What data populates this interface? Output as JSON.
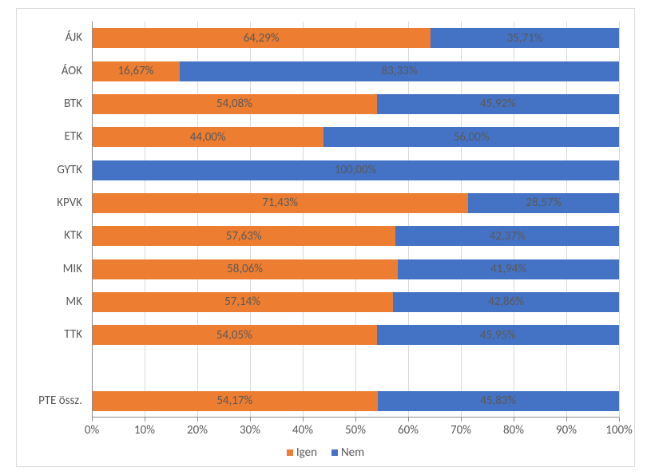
{
  "chart": {
    "type": "stacked-bar-horizontal",
    "background_color": "#ffffff",
    "border_color": "#d9d9d9",
    "grid_color": "#d9d9d9",
    "axis_line_color": "#8c8c8c",
    "text_color": "#595959",
    "label_fontsize": 15,
    "value_fontsize": 15,
    "legend_fontsize": 15,
    "xlim": [
      0,
      100
    ],
    "xtick_step": 10,
    "xtick_suffix": "%",
    "series": [
      {
        "key": "igen",
        "label": "Igen",
        "color": "#ed7d31"
      },
      {
        "key": "nem",
        "label": "Nem",
        "color": "#4472c4"
      }
    ],
    "categories": [
      {
        "label": "ÁJK",
        "igen": 64.29,
        "nem": 35.71,
        "igen_label": "64,29%",
        "nem_label": "35,71%"
      },
      {
        "label": "ÁOK",
        "igen": 16.67,
        "nem": 83.33,
        "igen_label": "16,67%",
        "nem_label": "83,33%"
      },
      {
        "label": "BTK",
        "igen": 54.08,
        "nem": 45.92,
        "igen_label": "54,08%",
        "nem_label": "45,92%"
      },
      {
        "label": "ETK",
        "igen": 44.0,
        "nem": 56.0,
        "igen_label": "44,00%",
        "nem_label": "56,00%"
      },
      {
        "label": "GYTK",
        "igen": 0.0,
        "nem": 100.0,
        "igen_label": "",
        "nem_label": "100,00%"
      },
      {
        "label": "KPVK",
        "igen": 71.43,
        "nem": 28.57,
        "igen_label": "71,43%",
        "nem_label": "28,57%"
      },
      {
        "label": "KTK",
        "igen": 57.63,
        "nem": 42.37,
        "igen_label": "57,63%",
        "nem_label": "42,37%"
      },
      {
        "label": "MIK",
        "igen": 58.06,
        "nem": 41.94,
        "igen_label": "58,06%",
        "nem_label": "41,94%"
      },
      {
        "label": "MK",
        "igen": 57.14,
        "nem": 42.86,
        "igen_label": "57,14%",
        "nem_label": "42,86%"
      },
      {
        "label": "TTK",
        "igen": 54.05,
        "nem": 45.95,
        "igen_label": "54,05%",
        "nem_label": "45,95%"
      },
      {
        "label": "",
        "gap": true
      },
      {
        "label": "PTE össz.",
        "igen": 54.17,
        "nem": 45.83,
        "igen_label": "54,17%",
        "nem_label": "45,83%"
      }
    ]
  }
}
